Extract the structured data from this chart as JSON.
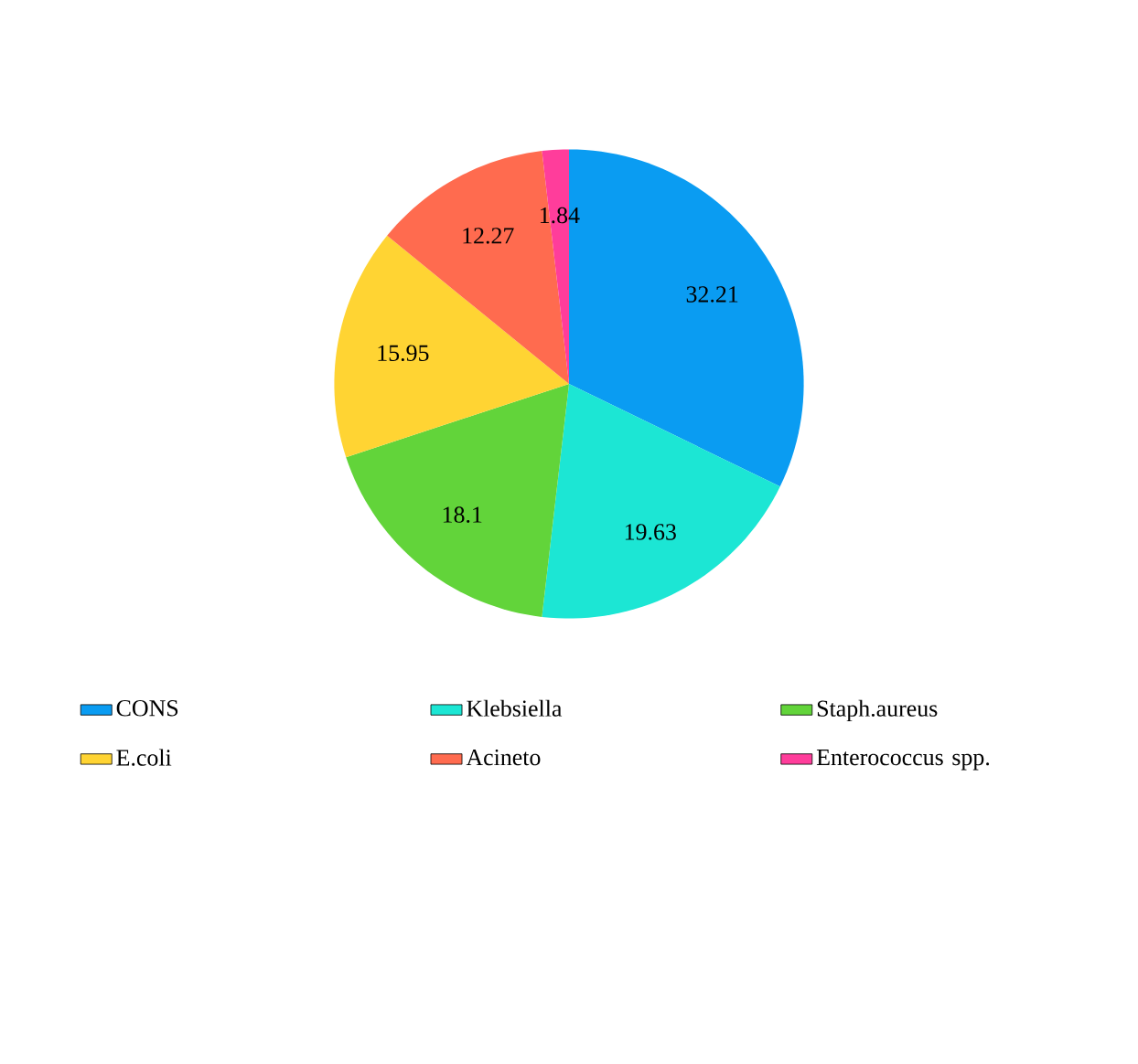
{
  "chart_data": {
    "type": "pie",
    "categories": [
      "CONS",
      "Klebsiella",
      "Staph.aureus",
      "E.coli",
      "Acineto",
      "Enterococcus spp."
    ],
    "values": [
      32.21,
      19.63,
      18.1,
      15.95,
      12.27,
      1.84
    ],
    "colors": [
      "#0a9cf2",
      "#1ce6d4",
      "#62d43a",
      "#ffd433",
      "#ff6b4f",
      "#ff3d9b"
    ],
    "data_labels": true,
    "legend": "bottom"
  }
}
